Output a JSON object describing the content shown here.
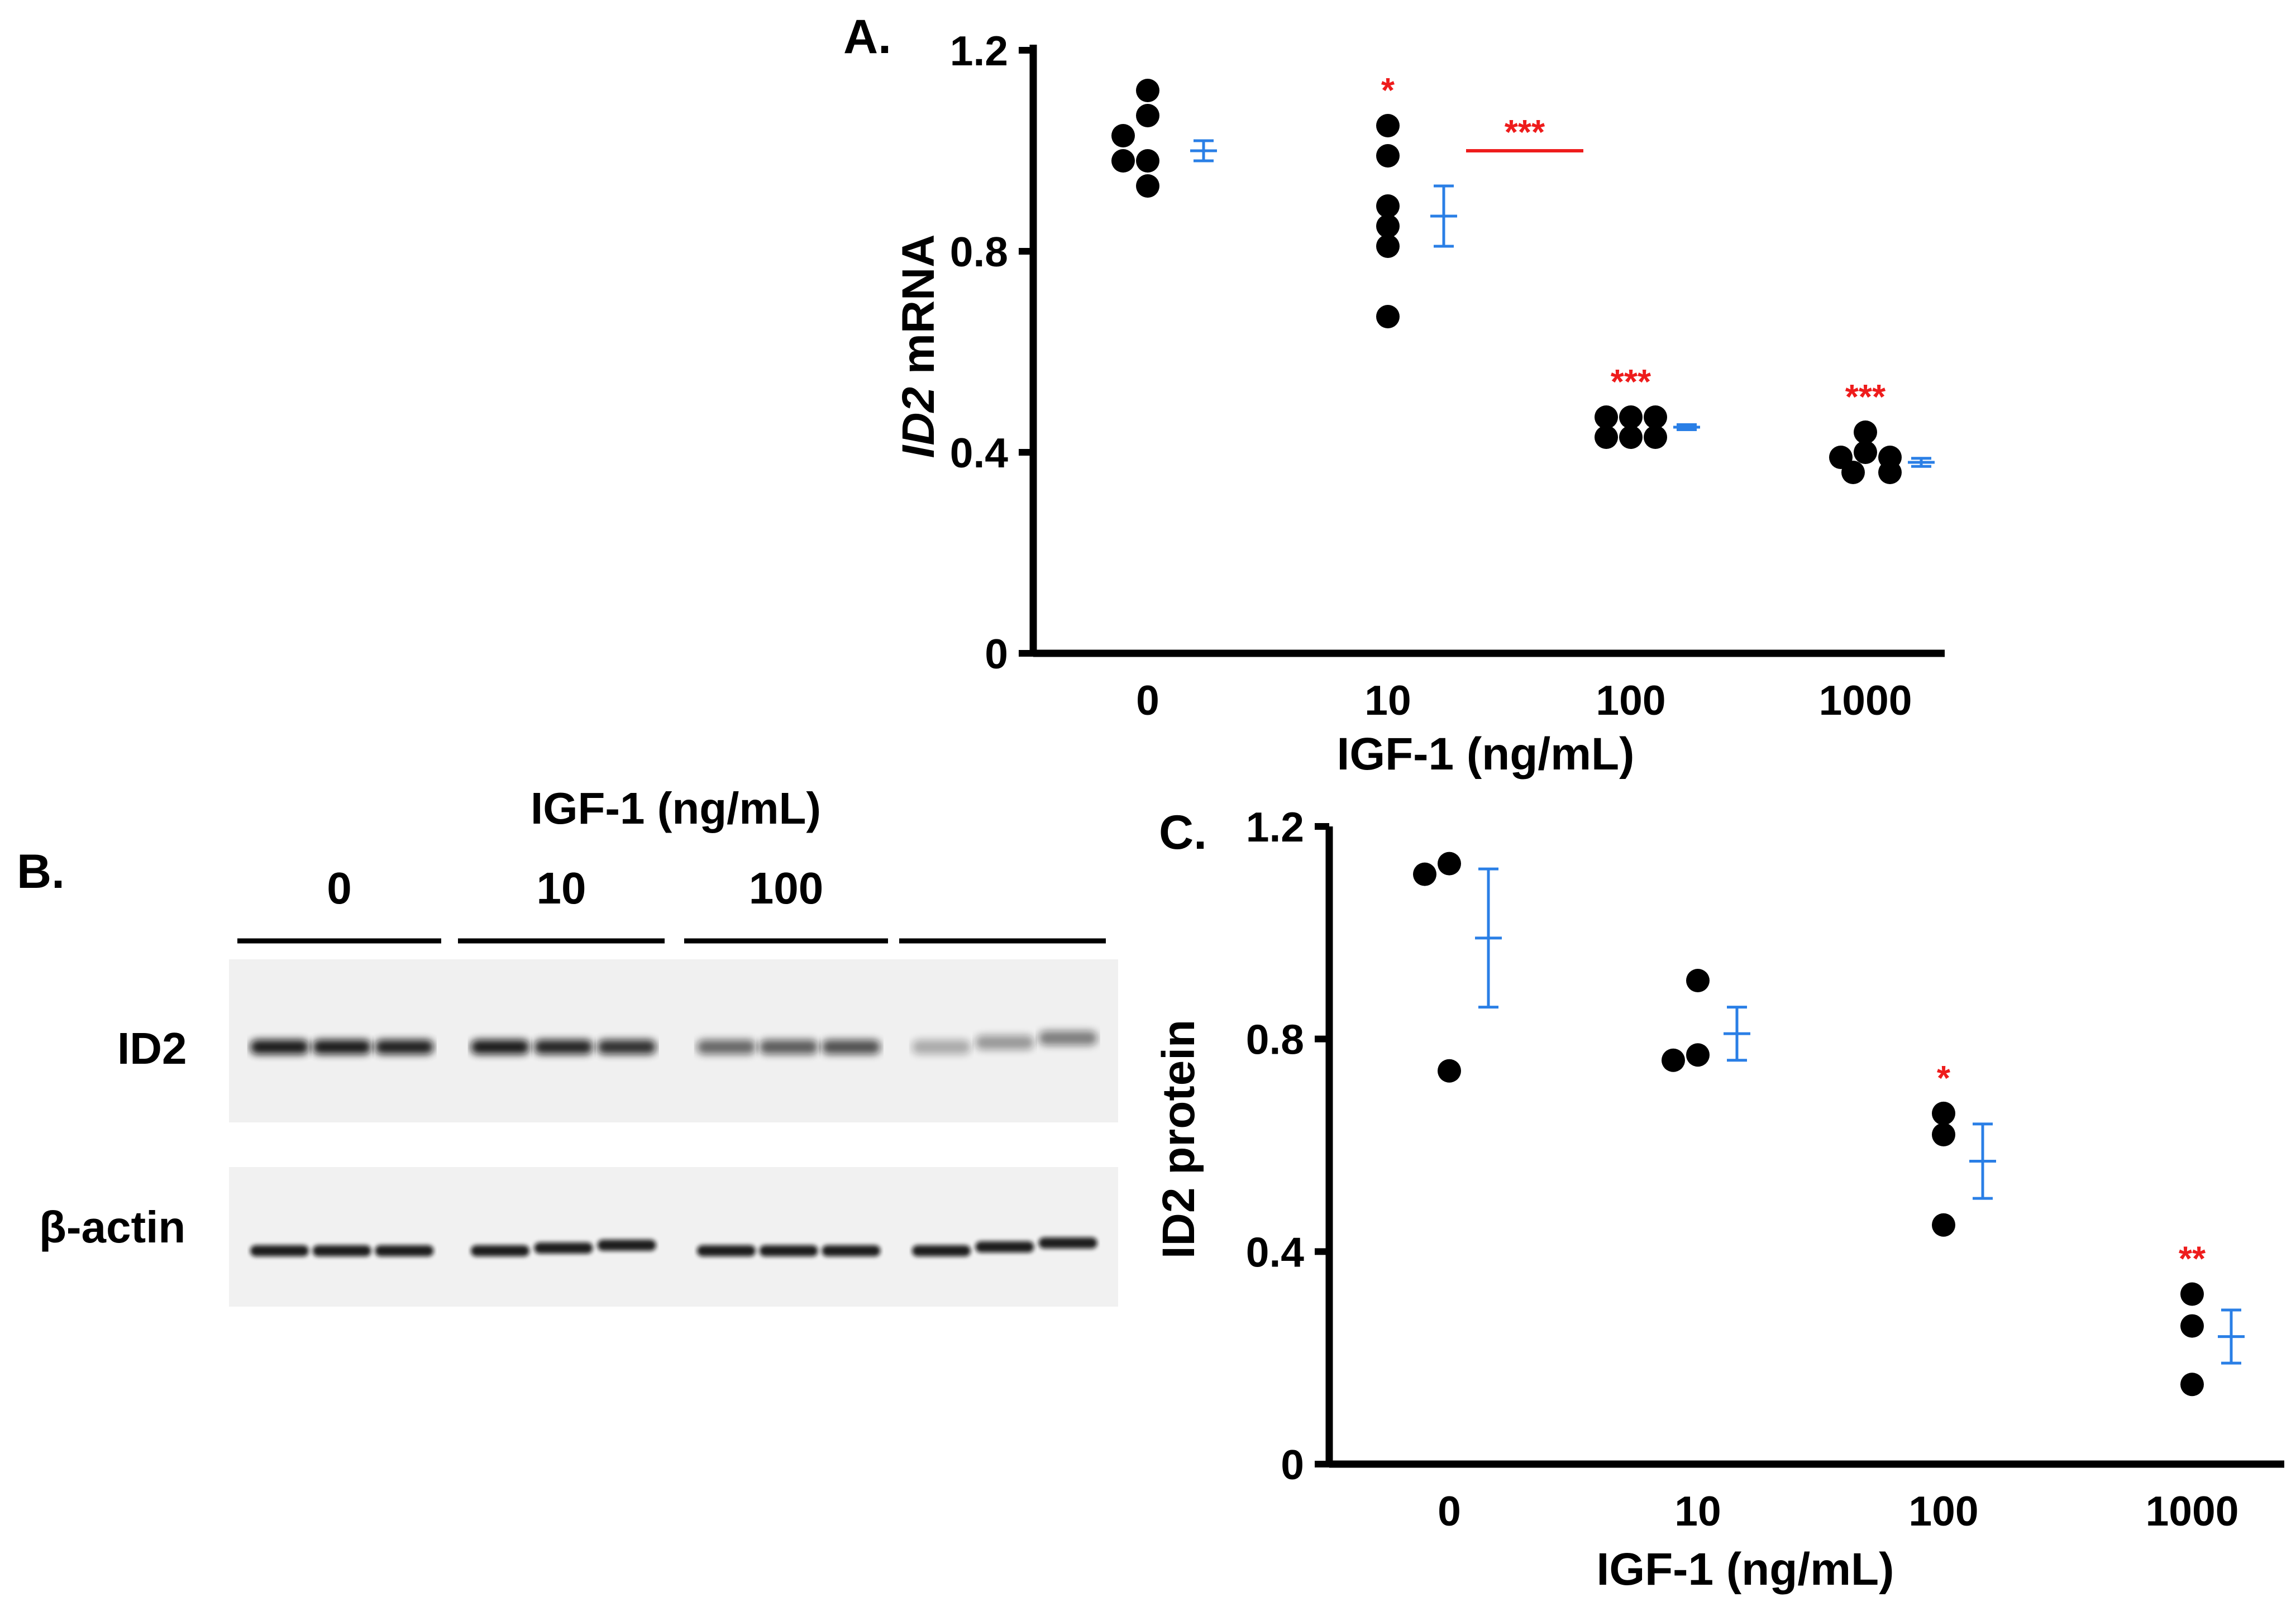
{
  "panel_a": {
    "label": "A.",
    "chart_data": {
      "type": "scatter",
      "title": "",
      "xlabel": "IGF-1 (ng/mL)",
      "ylabel_italic": "ID2",
      "ylabel_rest": " mRNA",
      "ylim": [
        0,
        1.2
      ],
      "yticks": [
        "0",
        "0.4",
        "0.8",
        "1.2"
      ],
      "categories": [
        "0",
        "10",
        "100",
        "1000"
      ],
      "points": [
        [
          1.12,
          1.07,
          1.03,
          0.98,
          0.98,
          0.93
        ],
        [
          1.05,
          0.99,
          0.89,
          0.85,
          0.81,
          0.67
        ],
        [
          0.47,
          0.47,
          0.47,
          0.43,
          0.43,
          0.43
        ],
        [
          0.44,
          0.4,
          0.39,
          0.39,
          0.36,
          0.36
        ]
      ],
      "mean": [
        1.0,
        0.87,
        0.45,
        0.38
      ],
      "error": [
        0.02,
        0.06,
        0.005,
        0.008
      ],
      "significance": [
        "",
        "*",
        "***",
        "***"
      ],
      "bracket": {
        "from": 1,
        "to": 2,
        "y": 1.0,
        "label": "***"
      }
    }
  },
  "panel_b": {
    "label": "B.",
    "header": "IGF-1 (ng/mL)",
    "lane_groups": [
      "0",
      "10",
      "100",
      ""
    ],
    "rows": [
      "ID2",
      "β-actin"
    ]
  },
  "panel_c": {
    "label": "C.",
    "chart_data": {
      "type": "scatter",
      "title": "",
      "xlabel": "IGF-1 (ng/mL)",
      "ylabel": "ID2 protein",
      "ylim": [
        0,
        1.2
      ],
      "yticks": [
        "0",
        "0.4",
        "0.8",
        "1.2"
      ],
      "categories": [
        "0",
        "10",
        "100",
        "1000"
      ],
      "points": [
        [
          1.13,
          1.11,
          0.74
        ],
        [
          0.91,
          0.77,
          0.76
        ],
        [
          0.66,
          0.62,
          0.45
        ],
        [
          0.32,
          0.26,
          0.15
        ]
      ],
      "mean": [
        0.99,
        0.81,
        0.57,
        0.24
      ],
      "error": [
        0.13,
        0.05,
        0.07,
        0.05
      ],
      "significance": [
        "",
        "",
        "*",
        "**"
      ]
    }
  },
  "colors": {
    "point": "#000000",
    "error_bar": "#2a7fe6",
    "significance": "#ee1c1c",
    "axis": "#000000"
  }
}
